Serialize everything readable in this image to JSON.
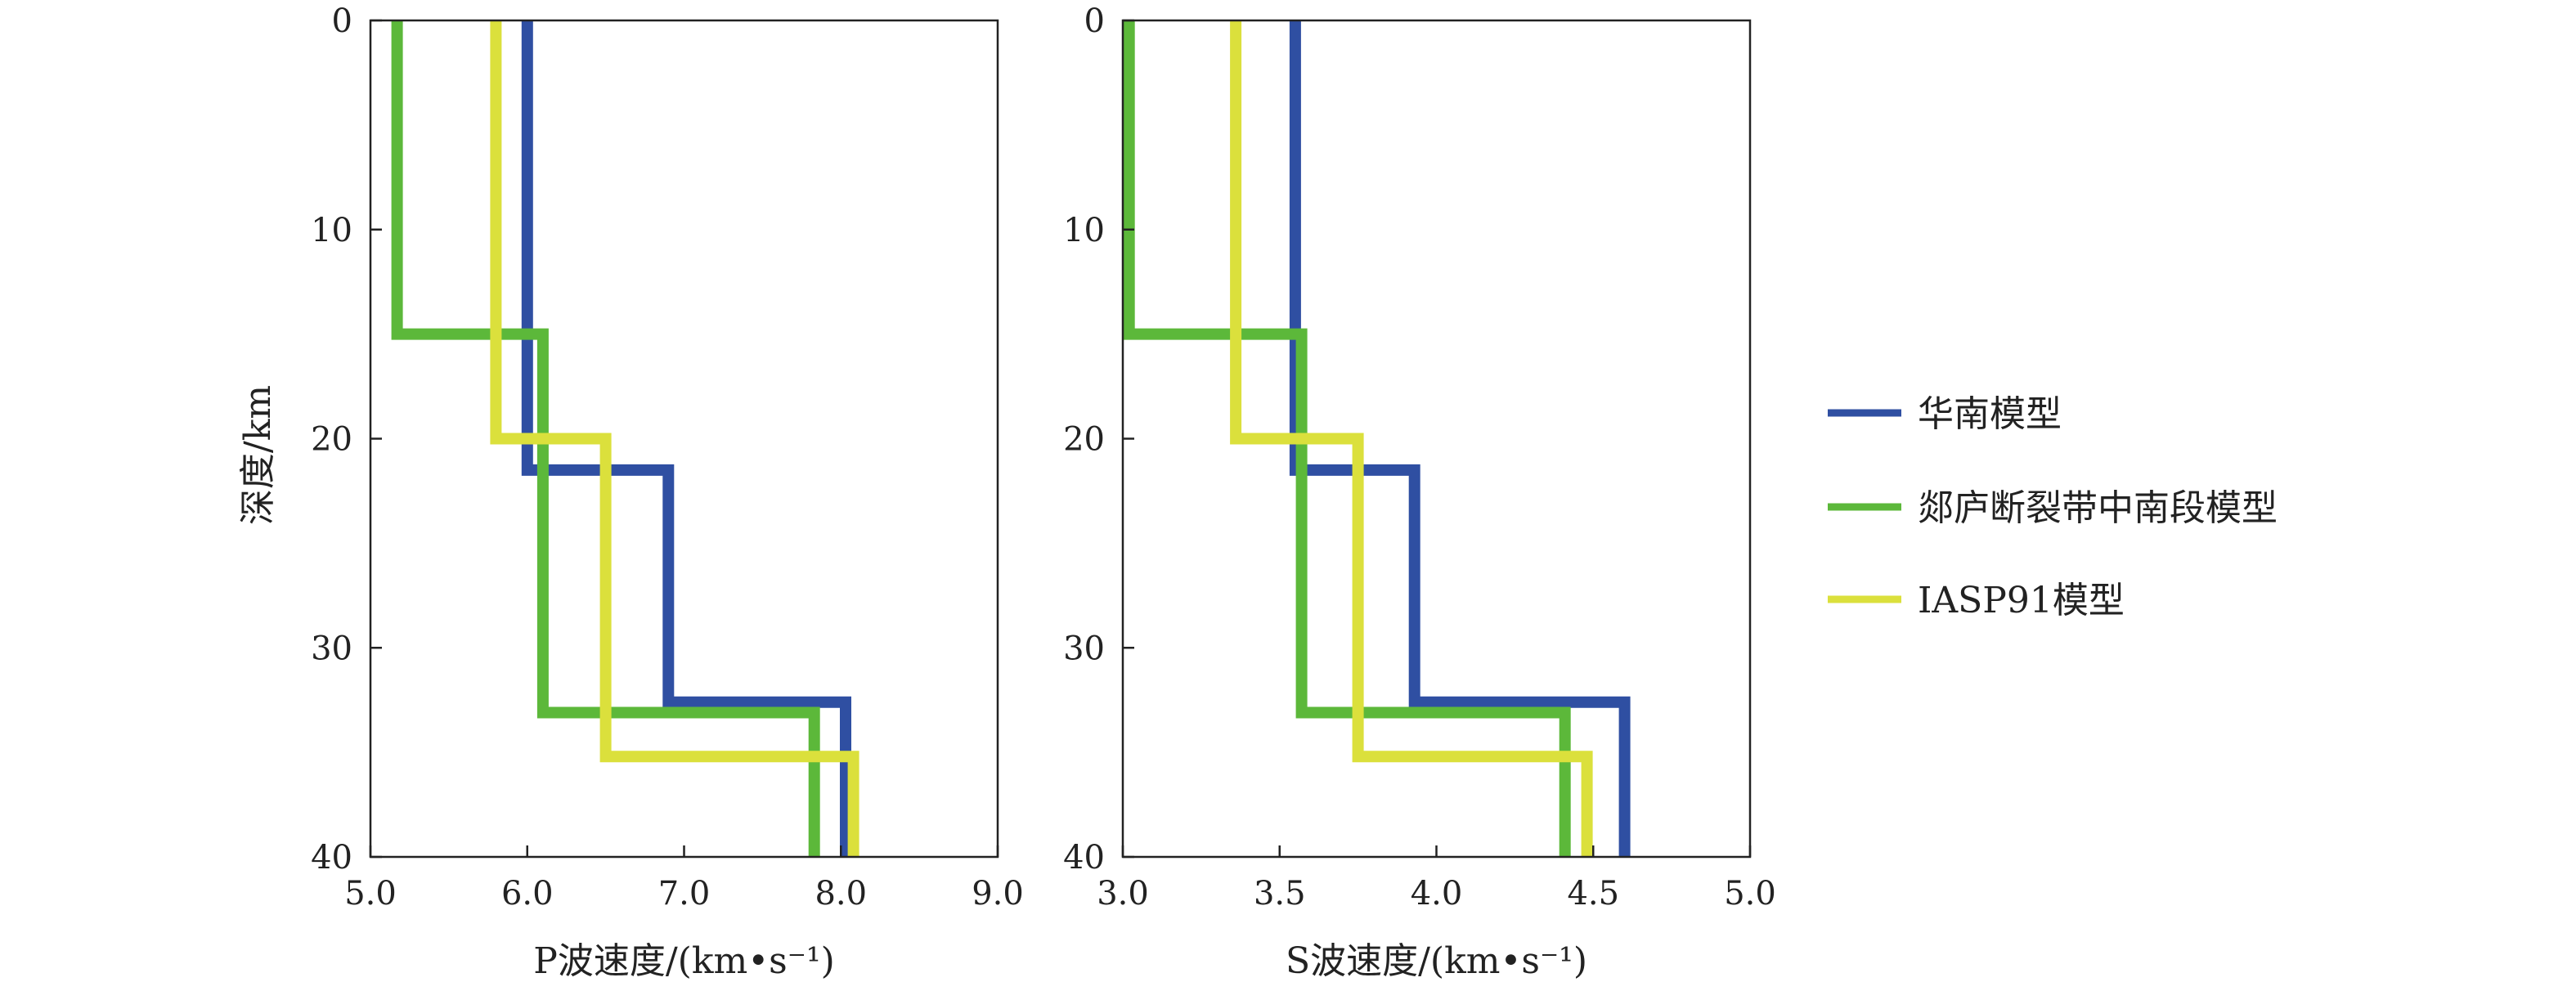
{
  "chart_data": [
    {
      "type": "line",
      "xlabel": "P波速度/(km•s⁻¹)",
      "ylabel": "深度/km",
      "xlim": [
        5.0,
        9.0
      ],
      "ylim": [
        0,
        40
      ],
      "y_inverted": true,
      "x_ticks": [
        "5.0",
        "6.0",
        "7.0",
        "8.0",
        "9.0"
      ],
      "y_ticks": [
        "0",
        "10",
        "20",
        "30",
        "40"
      ],
      "series": [
        {
          "name": "华南模型",
          "color": "#2f4fa2",
          "x": [
            6.0,
            6.0,
            6.9,
            6.9,
            8.03,
            8.03
          ],
          "y": [
            0,
            21.5,
            21.5,
            32.6,
            32.6,
            40
          ]
        },
        {
          "name": "郯庐断裂带中南段模型",
          "color": "#5cb83a",
          "x": [
            5.17,
            5.17,
            6.1,
            6.1,
            7.83,
            7.83
          ],
          "y": [
            0,
            15,
            15,
            33.1,
            33.1,
            40
          ]
        },
        {
          "name": "IASP91模型",
          "color": "#dbe03c",
          "x": [
            5.8,
            5.8,
            6.5,
            6.5,
            8.08,
            8.08
          ],
          "y": [
            0,
            20,
            20,
            35.2,
            35.2,
            40
          ]
        }
      ]
    },
    {
      "type": "line",
      "xlabel": "S波速度/(km•s⁻¹)",
      "ylabel": "",
      "xlim": [
        3.0,
        5.0
      ],
      "ylim": [
        0,
        40
      ],
      "y_inverted": true,
      "x_ticks": [
        "3.0",
        "3.5",
        "4.0",
        "4.5",
        "5.0"
      ],
      "y_ticks": [
        "0",
        "10",
        "20",
        "30",
        "40"
      ],
      "series": [
        {
          "name": "华南模型",
          "color": "#2f4fa2",
          "x": [
            3.55,
            3.55,
            3.93,
            3.93,
            4.6,
            4.6
          ],
          "y": [
            0,
            21.5,
            21.5,
            32.6,
            32.6,
            40
          ]
        },
        {
          "name": "郯庐断裂带中南段模型",
          "color": "#5cb83a",
          "x": [
            3.02,
            3.02,
            3.57,
            3.57,
            4.41,
            4.41
          ],
          "y": [
            0,
            15,
            15,
            33.1,
            33.1,
            40
          ]
        },
        {
          "name": "IASP91模型",
          "color": "#dbe03c",
          "x": [
            3.36,
            3.36,
            3.75,
            3.75,
            4.48,
            4.48
          ],
          "y": [
            0,
            20,
            20,
            35.2,
            35.2,
            40
          ]
        }
      ]
    }
  ],
  "legend": {
    "placement": "right",
    "items": [
      {
        "label": "华南模型",
        "color": "#2f4fa2"
      },
      {
        "label": "郯庐断裂带中南段模型",
        "color": "#5cb83a"
      },
      {
        "label": "IASP91模型",
        "color": "#dbe03c"
      }
    ]
  }
}
